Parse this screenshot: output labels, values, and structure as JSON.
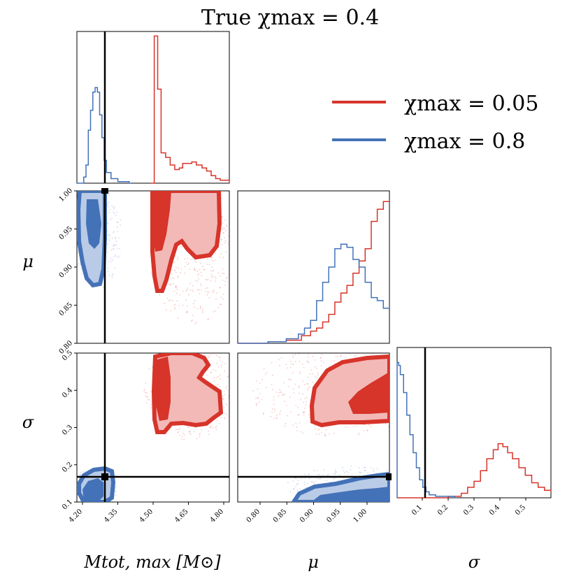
{
  "title": "True χmax = 0.4",
  "colors": {
    "low": "#d7342a",
    "high": "#4472b8",
    "truth": "#000000"
  },
  "legend": [
    {
      "label": "χmax = 0.05",
      "color": "#d7342a"
    },
    {
      "label": "χmax = 0.8",
      "color": "#4472b8"
    }
  ],
  "chart_data": [
    {
      "type": "histogram",
      "panel": "M_tot_max marginal",
      "xlim": [
        4.17,
        4.84
      ],
      "truth": 4.29,
      "series": [
        {
          "name": "χmax = 0.05",
          "bins": [
            [
              4.495,
              0
            ],
            [
              4.51,
              0.97
            ],
            [
              4.525,
              0.62
            ],
            [
              4.54,
              0.2
            ],
            [
              4.56,
              0.17
            ],
            [
              4.58,
              0.12
            ],
            [
              4.6,
              0.09
            ],
            [
              4.62,
              0.1
            ],
            [
              4.635,
              0.13
            ],
            [
              4.655,
              0.13
            ],
            [
              4.675,
              0.14
            ],
            [
              4.695,
              0.12
            ],
            [
              4.72,
              0.1
            ],
            [
              4.74,
              0.08
            ],
            [
              4.76,
              0.05
            ],
            [
              4.78,
              0.03
            ],
            [
              4.8,
              0.02
            ],
            [
              4.84,
              0
            ]
          ]
        },
        {
          "name": "χmax = 0.8",
          "bins": [
            [
              4.17,
              0
            ],
            [
              4.2,
              0.04
            ],
            [
              4.21,
              0.12
            ],
            [
              4.22,
              0.35
            ],
            [
              4.23,
              0.48
            ],
            [
              4.24,
              0.6
            ],
            [
              4.25,
              0.63
            ],
            [
              4.26,
              0.6
            ],
            [
              4.27,
              0.45
            ],
            [
              4.28,
              0.3
            ],
            [
              4.29,
              0.15
            ],
            [
              4.3,
              0.07
            ],
            [
              4.32,
              0.03
            ],
            [
              4.35,
              0.01
            ],
            [
              4.4,
              0
            ]
          ]
        }
      ]
    },
    {
      "type": "contour",
      "panel": "mu vs M_tot_max",
      "xlim": [
        4.17,
        4.84
      ],
      "ylim": [
        0.75,
        1.0
      ],
      "truth": [
        4.29,
        1.0
      ],
      "ylabel": "μ",
      "yticks": [
        "0.80",
        "0.85",
        "0.90",
        "0.95",
        "1.00"
      ]
    },
    {
      "type": "histogram",
      "panel": "mu marginal",
      "xlim": [
        0.75,
        1.0
      ],
      "series": [
        {
          "name": "χmax = 0.05",
          "bins": [
            [
              0.75,
              0
            ],
            [
              0.8,
              0.01
            ],
            [
              0.83,
              0.02
            ],
            [
              0.855,
              0.05
            ],
            [
              0.87,
              0.08
            ],
            [
              0.88,
              0.1
            ],
            [
              0.89,
              0.14
            ],
            [
              0.9,
              0.19
            ],
            [
              0.91,
              0.27
            ],
            [
              0.92,
              0.33
            ],
            [
              0.93,
              0.38
            ],
            [
              0.94,
              0.46
            ],
            [
              0.95,
              0.54
            ],
            [
              0.96,
              0.62
            ],
            [
              0.97,
              0.8
            ],
            [
              0.98,
              0.88
            ],
            [
              0.99,
              0.93
            ],
            [
              1.0,
              0.93
            ]
          ]
        },
        {
          "name": "χmax = 0.8",
          "bins": [
            [
              0.75,
              0
            ],
            [
              0.8,
              0.01
            ],
            [
              0.83,
              0.03
            ],
            [
              0.85,
              0.06
            ],
            [
              0.86,
              0.1
            ],
            [
              0.87,
              0.15
            ],
            [
              0.88,
              0.28
            ],
            [
              0.89,
              0.4
            ],
            [
              0.9,
              0.5
            ],
            [
              0.91,
              0.62
            ],
            [
              0.92,
              0.65
            ],
            [
              0.93,
              0.63
            ],
            [
              0.94,
              0.55
            ],
            [
              0.95,
              0.5
            ],
            [
              0.96,
              0.4
            ],
            [
              0.97,
              0.3
            ],
            [
              0.98,
              0.28
            ],
            [
              0.99,
              0.23
            ],
            [
              1.0,
              0.23
            ]
          ]
        }
      ]
    },
    {
      "type": "contour",
      "panel": "sigma vs M_tot_max",
      "xlim": [
        4.17,
        4.84
      ],
      "ylim": [
        0.02,
        0.5
      ],
      "truth": [
        4.29,
        0.1
      ],
      "xlabel": "Mtot, max [M⊙]",
      "ylabel": "σ",
      "xticks": [
        "4.20",
        "4.35",
        "4.50",
        "4.65",
        "4.80"
      ],
      "yticks": [
        "0.1",
        "0.2",
        "0.3",
        "0.4",
        "0.5"
      ]
    },
    {
      "type": "contour",
      "panel": "sigma vs mu",
      "xlim": [
        0.75,
        1.0
      ],
      "ylim": [
        0.02,
        0.5
      ],
      "truth": [
        1.0,
        0.1
      ],
      "xlabel": "μ",
      "xticks": [
        "0.80",
        "0.85",
        "0.90",
        "0.95",
        "1.00"
      ]
    },
    {
      "type": "histogram",
      "panel": "sigma marginal",
      "xlim": [
        0.02,
        0.5
      ],
      "truth": 0.1,
      "xlabel": "σ",
      "xticks": [
        "0.1",
        "0.2",
        "0.3",
        "0.4",
        "0.5"
      ],
      "series": [
        {
          "name": "χmax = 0.05",
          "bins": [
            [
              0.02,
              0
            ],
            [
              0.18,
              0.01
            ],
            [
              0.22,
              0.03
            ],
            [
              0.24,
              0.07
            ],
            [
              0.26,
              0.11
            ],
            [
              0.28,
              0.18
            ],
            [
              0.3,
              0.26
            ],
            [
              0.32,
              0.32
            ],
            [
              0.335,
              0.36
            ],
            [
              0.35,
              0.34
            ],
            [
              0.365,
              0.3
            ],
            [
              0.38,
              0.26
            ],
            [
              0.4,
              0.2
            ],
            [
              0.42,
              0.15
            ],
            [
              0.44,
              0.1
            ],
            [
              0.46,
              0.07
            ],
            [
              0.48,
              0.05
            ],
            [
              0.5,
              0.04
            ]
          ]
        },
        {
          "name": "χmax = 0.8",
          "bins": [
            [
              0.02,
              0.9
            ],
            [
              0.025,
              0.88
            ],
            [
              0.03,
              0.82
            ],
            [
              0.04,
              0.7
            ],
            [
              0.05,
              0.55
            ],
            [
              0.06,
              0.42
            ],
            [
              0.07,
              0.3
            ],
            [
              0.08,
              0.2
            ],
            [
              0.09,
              0.12
            ],
            [
              0.1,
              0.07
            ],
            [
              0.11,
              0.04
            ],
            [
              0.12,
              0.02
            ],
            [
              0.14,
              0.01
            ],
            [
              0.2,
              0
            ]
          ]
        }
      ]
    }
  ]
}
